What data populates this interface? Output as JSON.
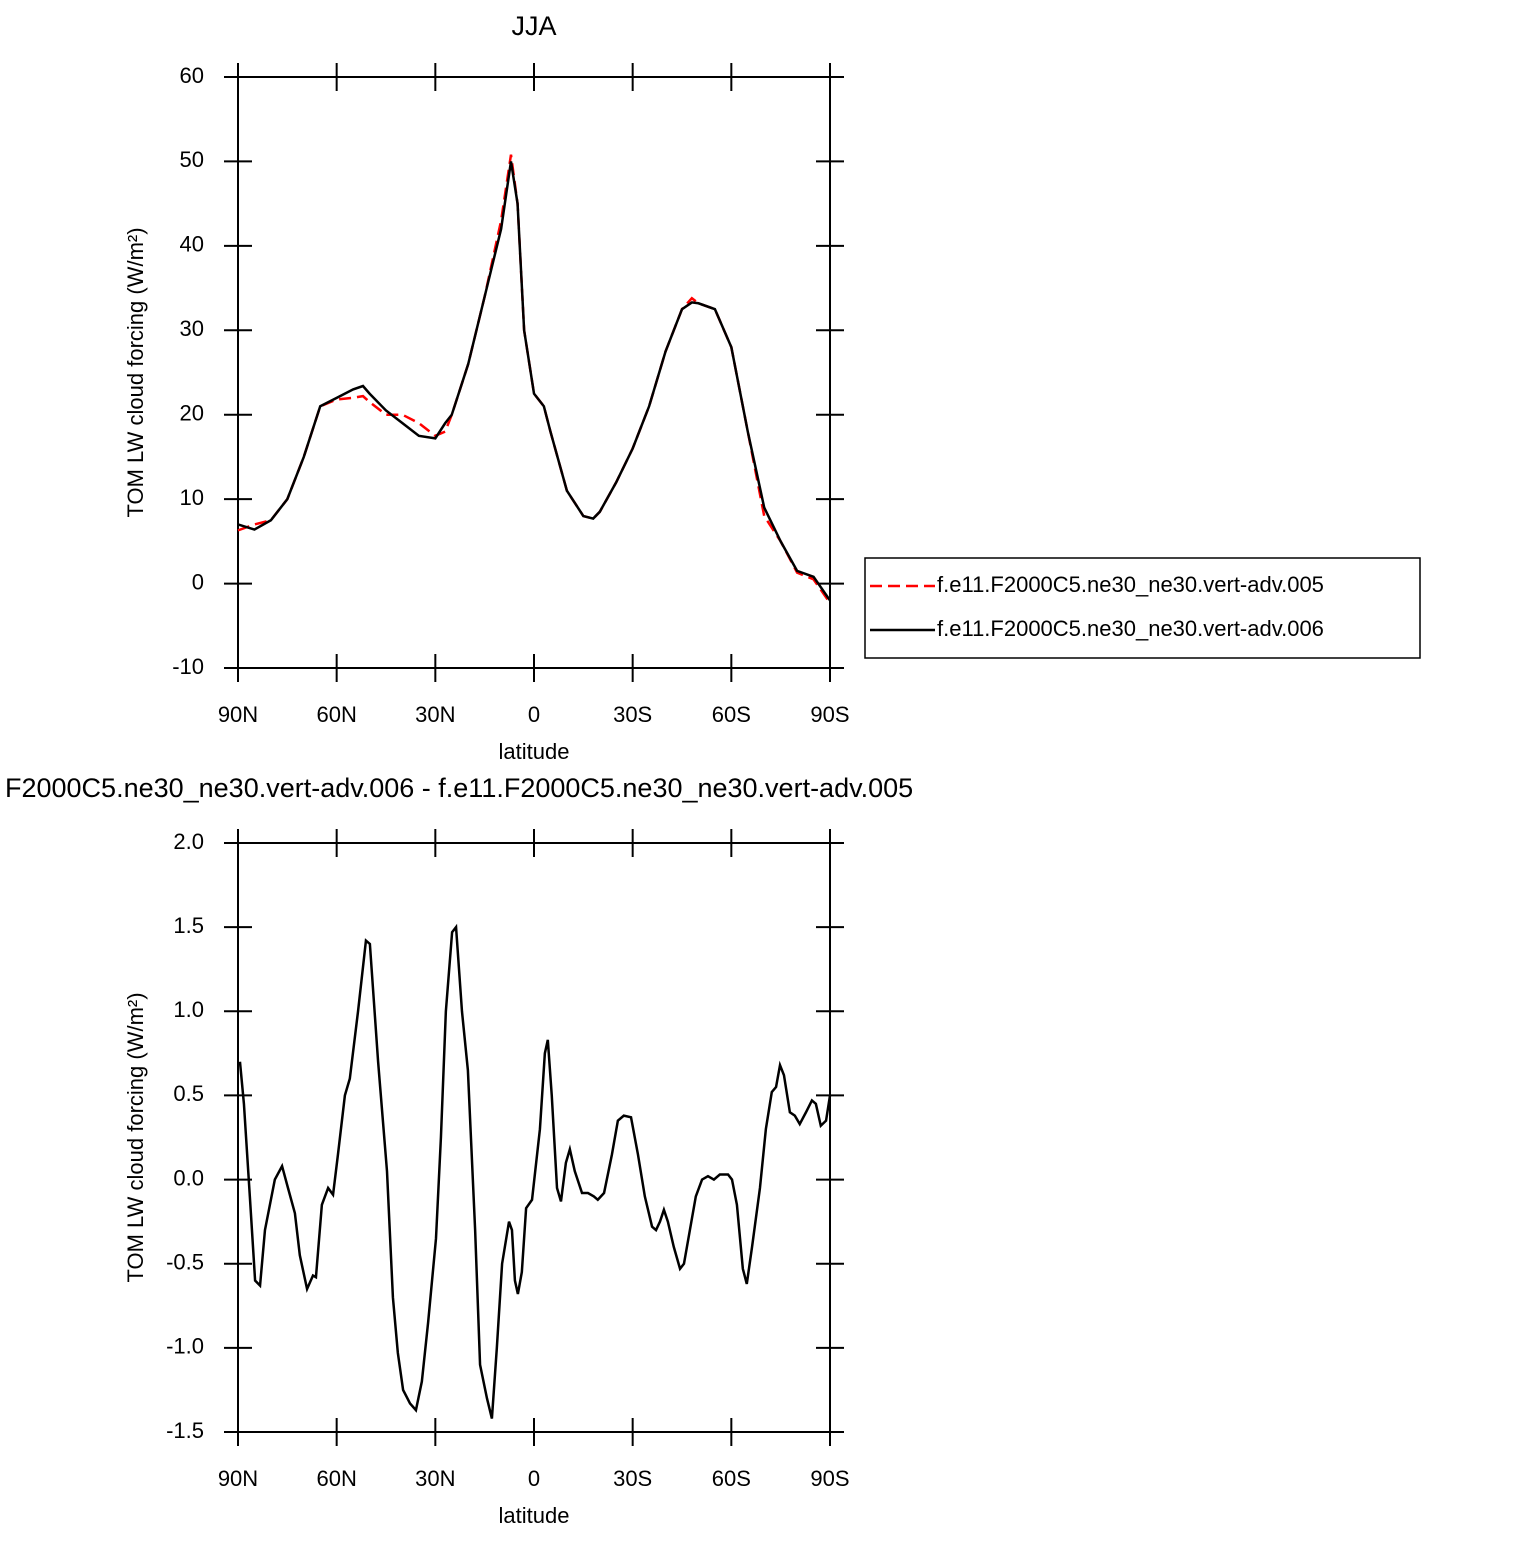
{
  "chart_data": [
    {
      "type": "line",
      "title": "JJA",
      "xlabel": "latitude",
      "ylabel": "TOM LW cloud forcing (W/m²)",
      "x": [
        90,
        85,
        80,
        75,
        70,
        65,
        60,
        55,
        52,
        50,
        45,
        40,
        35,
        30,
        27,
        25,
        20,
        15,
        10,
        7,
        5,
        3,
        0,
        -3,
        -5,
        -10,
        -15,
        -18,
        -20,
        -25,
        -30,
        -35,
        -40,
        -45,
        -48,
        -50,
        -55,
        -60,
        -65,
        -70,
        -75,
        -80,
        -85,
        -90
      ],
      "series": [
        {
          "name": "f.e11.F2000C5.ne30_ne30.vert-adv.005",
          "color": "#ff0000",
          "linestyle": "dashed",
          "values": [
            6.3,
            7,
            7.5,
            10,
            15,
            21,
            21.8,
            22,
            22.2,
            21.5,
            20,
            20,
            19,
            17.5,
            18,
            20,
            26,
            34,
            43,
            50.8,
            45,
            30,
            22.5,
            21,
            18,
            11,
            8,
            7.7,
            8.5,
            12,
            16,
            21,
            27.5,
            32.5,
            33.8,
            33.2,
            32.5,
            28,
            18,
            8,
            5,
            1.3,
            0.5,
            -2.3
          ]
        },
        {
          "name": "f.e11.F2000C5.ne30_ne30.vert-adv.006",
          "color": "#000000",
          "linestyle": "solid",
          "values": [
            7,
            6.4,
            7.5,
            10,
            15,
            21,
            22,
            23,
            23.4,
            22.5,
            20.5,
            19,
            17.5,
            17.2,
            19,
            20,
            26,
            34,
            42,
            50,
            45,
            30,
            22.5,
            21,
            18,
            11,
            8,
            7.7,
            8.5,
            12,
            16,
            21,
            27.5,
            32.5,
            33.3,
            33.2,
            32.5,
            28,
            18,
            9,
            5,
            1.5,
            0.8,
            -2
          ]
        }
      ],
      "xlim": [
        90,
        -90
      ],
      "xticks": [
        {
          "value": 90,
          "label": "90N"
        },
        {
          "value": 60,
          "label": "60N"
        },
        {
          "value": 30,
          "label": "30N"
        },
        0,
        {
          "value": -30,
          "label": "30S"
        },
        {
          "value": -60,
          "label": "60S"
        },
        {
          "value": -90,
          "label": "90S"
        }
      ],
      "ylim": [
        -10,
        60
      ],
      "yticks": [
        60,
        50,
        40,
        30,
        20,
        10,
        0,
        -10
      ],
      "legend": "right"
    },
    {
      "type": "line",
      "title": "F2000C5.ne30_ne30.vert-adv.006 - f.e11.F2000C5.ne30_ne30.vert-adv.005",
      "xlabel": "latitude",
      "ylabel": "TOM LW cloud forcing (W/m²)",
      "color": "#000000",
      "x": [
        89.4,
        88.2,
        86.4,
        84.8,
        83.3,
        81.8,
        78.8,
        76.6,
        74.8,
        72.7,
        71.2,
        69.0,
        67.2,
        66.3,
        64.5,
        62.6,
        61.1,
        59.6,
        57.5,
        56.0,
        53.5,
        51.1,
        49.9,
        47.4,
        44.7,
        42.9,
        41.4,
        39.8,
        37.7,
        35.9,
        34.1,
        32.2,
        29.8,
        28.3,
        26.8,
        24.9,
        23.7,
        21.9,
        20.1,
        17.9,
        16.4,
        14.3,
        12.8,
        11.3,
        9.7,
        7.6,
        6.7,
        5.8,
        4.9,
        3.7,
        2.4,
        0.6,
        -1.8,
        -3.3,
        -4.2,
        -5.4,
        -7.0,
        -8.2,
        -9.7,
        -10.9,
        -12.4,
        -14.6,
        -16.4,
        -18.2,
        -19.4,
        -21.3,
        -23.7,
        -25.5,
        -27.3,
        -29.5,
        -31.6,
        -33.7,
        -35.9,
        -37.1,
        -38.3,
        -39.5,
        -40.7,
        -42.5,
        -44.4,
        -45.6,
        -47.4,
        -49.2,
        -51.1,
        -52.9,
        -54.7,
        -56.5,
        -59.0,
        -60.2,
        -61.7,
        -63.5,
        -64.7,
        -66.3,
        -68.7,
        -70.5,
        -72.3,
        -73.6,
        -74.8,
        -76.0,
        -77.8,
        -79.3,
        -80.8,
        -82.7,
        -84.5,
        -85.7,
        -87.2,
        -88.8,
        -90.0
      ],
      "values": [
        0.7,
        0.45,
        -0.1,
        -0.6,
        -0.63,
        -0.3,
        0.0,
        0.08,
        -0.05,
        -0.2,
        -0.45,
        -0.65,
        -0.57,
        -0.58,
        -0.15,
        -0.05,
        -0.09,
        0.15,
        0.5,
        0.6,
        1.0,
        1.42,
        1.4,
        0.7,
        0.05,
        -0.7,
        -1.03,
        -1.25,
        -1.33,
        -1.37,
        -1.2,
        -0.85,
        -0.35,
        0.25,
        1.0,
        1.47,
        1.5,
        1.0,
        0.65,
        -0.3,
        -1.1,
        -1.3,
        -1.42,
        -1.0,
        -0.5,
        -0.25,
        -0.3,
        -0.6,
        -0.68,
        -0.55,
        -0.17,
        -0.12,
        0.3,
        0.75,
        0.83,
        0.5,
        -0.05,
        -0.13,
        0.1,
        0.18,
        0.05,
        -0.08,
        -0.08,
        -0.1,
        -0.12,
        -0.08,
        0.15,
        0.35,
        0.38,
        0.37,
        0.15,
        -0.1,
        -0.28,
        -0.3,
        -0.25,
        -0.18,
        -0.25,
        -0.4,
        -0.53,
        -0.5,
        -0.3,
        -0.1,
        0.0,
        0.02,
        0.0,
        0.03,
        0.03,
        0.0,
        -0.15,
        -0.53,
        -0.62,
        -0.4,
        -0.05,
        0.3,
        0.52,
        0.55,
        0.68,
        0.62,
        0.4,
        0.38,
        0.33,
        0.4,
        0.47,
        0.45,
        0.32,
        0.35,
        0.5
      ],
      "xlim": [
        90,
        -90
      ],
      "xticks": [
        {
          "value": 90,
          "label": "90N"
        },
        {
          "value": 60,
          "label": "60N"
        },
        {
          "value": 30,
          "label": "30N"
        },
        0,
        {
          "value": -30,
          "label": "30S"
        },
        {
          "value": -60,
          "label": "60S"
        },
        {
          "value": -90,
          "label": "90S"
        }
      ],
      "ylim": [
        -1.5,
        2
      ],
      "yticks": [
        {
          "value": 2,
          "label": "2.0"
        },
        1.5,
        {
          "value": 1,
          "label": "1.0"
        },
        0.5,
        {
          "value": 0,
          "label": "0.0"
        },
        -0.5,
        {
          "value": -1,
          "label": "-1.0"
        },
        -1.5
      ]
    }
  ]
}
